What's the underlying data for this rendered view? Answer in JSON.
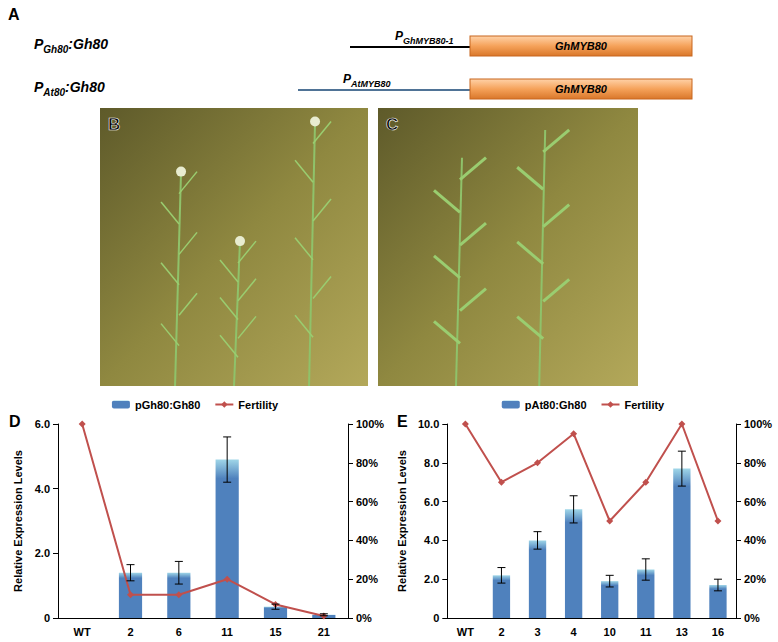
{
  "panel_a": {
    "label": "A",
    "gene_color": "#f5a25a",
    "constructs": [
      {
        "name": {
          "prefix": "P",
          "subscript": "Gh80",
          "suffix": ":Gh80"
        },
        "promoter": {
          "prefix": "P",
          "subscript": "GhMYB80-1"
        },
        "promoter_color": "#000000",
        "gene": "GhMYB80"
      },
      {
        "name": {
          "prefix": "P",
          "subscript": "At80",
          "suffix": ":Gh80"
        },
        "promoter": {
          "prefix": "P",
          "subscript": "AtMYB80"
        },
        "promoter_color": "#4f7396",
        "gene": "GhMYB80"
      }
    ]
  },
  "photos": [
    {
      "label": "B"
    },
    {
      "label": "C"
    }
  ],
  "chart_data": [
    {
      "panel": "D",
      "type": "bar",
      "categories": [
        "WT",
        "2",
        "6",
        "11",
        "15",
        "21"
      ],
      "ylabel": "Relative Expression Levels",
      "ylim": [
        0,
        6
      ],
      "yticks": [
        0,
        {
          "value": 2,
          "label": "2.0"
        },
        {
          "value": 4,
          "label": "4.0"
        },
        {
          "value": 6,
          "label": "6.0"
        }
      ],
      "y2lim": [
        0,
        100
      ],
      "y2ticks": [
        {
          "value": 0,
          "label": "0%"
        },
        {
          "value": 20,
          "label": "20%"
        },
        {
          "value": 40,
          "label": "40%"
        },
        {
          "value": 60,
          "label": "60%"
        },
        {
          "value": 80,
          "label": "80%"
        },
        {
          "value": 100,
          "label": "100%"
        }
      ],
      "grid": false,
      "legend": "top",
      "series": [
        {
          "name": "pGh80:Gh80",
          "type": "bar",
          "color": "#4f81bd",
          "values": [
            0,
            1.4,
            1.4,
            4.9,
            0.35,
            0.1
          ],
          "errors": [
            null,
            0.25,
            0.35,
            0.7,
            0.08,
            0.03
          ]
        },
        {
          "name": "Fertility",
          "type": "line",
          "axis": "y2",
          "color": "#c0504d",
          "marker": "diamond",
          "values": [
            100,
            12,
            12,
            20,
            7,
            1
          ]
        }
      ]
    },
    {
      "panel": "E",
      "type": "bar",
      "categories": [
        "WT",
        "2",
        "3",
        "4",
        "10",
        "11",
        "13",
        "16"
      ],
      "ylabel": "Relative Expression Levels",
      "ylim": [
        0,
        10
      ],
      "yticks": [
        0,
        {
          "value": 2,
          "label": "2.0"
        },
        {
          "value": 4,
          "label": "4.0"
        },
        {
          "value": 6,
          "label": "6.0"
        },
        {
          "value": 8,
          "label": "8.0"
        },
        {
          "value": 10,
          "label": "10.0"
        }
      ],
      "y2lim": [
        0,
        100
      ],
      "y2ticks": [
        {
          "value": 0,
          "label": "0%"
        },
        {
          "value": 20,
          "label": "20%"
        },
        {
          "value": 40,
          "label": "40%"
        },
        {
          "value": 60,
          "label": "60%"
        },
        {
          "value": 80,
          "label": "80%"
        },
        {
          "value": 100,
          "label": "100%"
        }
      ],
      "grid": false,
      "legend": "top",
      "series": [
        {
          "name": "pAt80:Gh80",
          "type": "bar",
          "color": "#4f81bd",
          "values": [
            0,
            2.2,
            4.0,
            5.6,
            1.9,
            2.5,
            7.7,
            1.7
          ],
          "errors": [
            null,
            0.4,
            0.45,
            0.7,
            0.3,
            0.55,
            0.9,
            0.3
          ]
        },
        {
          "name": "Fertility",
          "type": "line",
          "axis": "y2",
          "color": "#c0504d",
          "marker": "diamond",
          "values": [
            100,
            70,
            80,
            95,
            50,
            70,
            100,
            50
          ]
        }
      ]
    }
  ]
}
